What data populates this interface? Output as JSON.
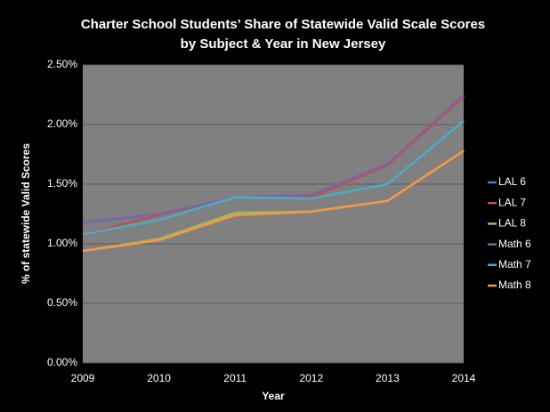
{
  "chart_data": {
    "type": "line",
    "title": "Charter School Students’ Share of Statewide Valid Scale Scores",
    "subtitle": "by Subject & Year in New Jersey",
    "x_label": "Year",
    "y_label": "% of statewide Valid Scores",
    "categories": [
      "2009",
      "2010",
      "2011",
      "2012",
      "2013",
      "2014"
    ],
    "series": [
      {
        "name": "LAL 6",
        "color": "#4f81bd",
        "values": [
          1.18,
          1.24,
          1.39,
          1.4,
          1.66,
          2.24
        ]
      },
      {
        "name": "LAL 7",
        "color": "#c0504d",
        "values": [
          1.08,
          1.24,
          1.39,
          1.39,
          1.66,
          2.23
        ]
      },
      {
        "name": "LAL 8",
        "color": "#9bbb59",
        "values": [
          0.94,
          1.04,
          1.26,
          1.27,
          1.36,
          1.78
        ]
      },
      {
        "name": "Math 6",
        "color": "#8064a2",
        "values": [
          1.18,
          1.25,
          1.39,
          1.41,
          1.67,
          2.25
        ]
      },
      {
        "name": "Math 7",
        "color": "#4bacc6",
        "values": [
          1.08,
          1.2,
          1.39,
          1.38,
          1.5,
          2.03
        ]
      },
      {
        "name": "Math 8",
        "color": "#f79646",
        "values": [
          0.94,
          1.03,
          1.24,
          1.27,
          1.36,
          1.78
        ]
      }
    ],
    "ylim": [
      0,
      2.5
    ],
    "yticks": [
      {
        "value": 0,
        "label": "0.00%"
      },
      {
        "value": 0.5,
        "label": "0.50%"
      },
      {
        "value": 1,
        "label": "1.00%"
      },
      {
        "value": 1.5,
        "label": "1.50%"
      },
      {
        "value": 2,
        "label": "2.00%"
      },
      {
        "value": 2.5,
        "label": "2.50%"
      }
    ],
    "grid": true,
    "legend": "right"
  }
}
